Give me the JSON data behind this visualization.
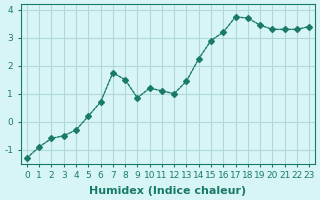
{
  "x": [
    0,
    1,
    2,
    3,
    4,
    5,
    6,
    7,
    8,
    9,
    10,
    11,
    12,
    13,
    14,
    15,
    16,
    17,
    18,
    19,
    20,
    21,
    22,
    23
  ],
  "y": [
    -1.3,
    -0.9,
    -0.6,
    -0.5,
    -0.3,
    0.2,
    0.7,
    1.75,
    1.5,
    0.85,
    1.2,
    1.1,
    1.0,
    1.45,
    2.25,
    2.9,
    3.2,
    3.75,
    3.7,
    3.45,
    3.3,
    3.3,
    3.3,
    3.4
  ],
  "line_color": "#1a7a6a",
  "marker": "D",
  "marker_size": 3,
  "bg_color": "#d8f5f5",
  "grid_color": "#b0d8d8",
  "xlabel": "Humidex (Indice chaleur)",
  "xlabel_fontsize": 8,
  "ylabel": "",
  "xlim": [
    -0.5,
    23.5
  ],
  "ylim": [
    -1.5,
    4.2
  ],
  "yticks": [
    -1,
    0,
    1,
    2,
    3,
    4
  ],
  "xticks": [
    0,
    1,
    2,
    3,
    4,
    5,
    6,
    7,
    8,
    9,
    10,
    11,
    12,
    13,
    14,
    15,
    16,
    17,
    18,
    19,
    20,
    21,
    22,
    23
  ],
  "tick_fontsize": 6.5,
  "axis_color": "#1a7a6a",
  "spine_color": "#1a7a6a"
}
